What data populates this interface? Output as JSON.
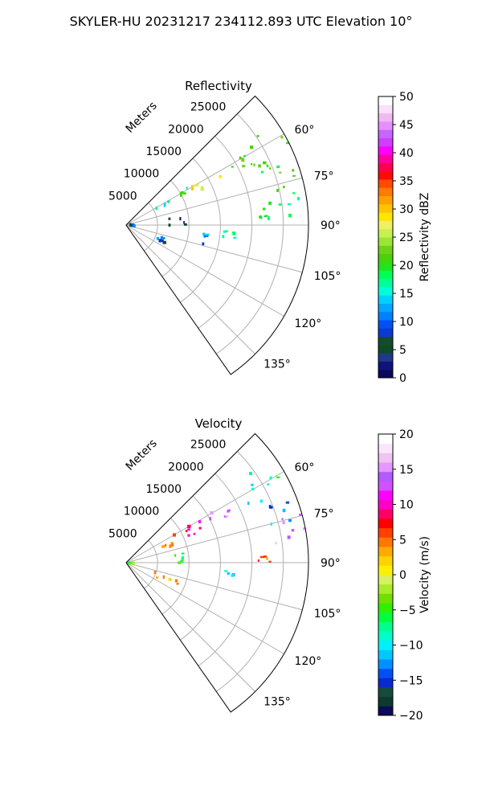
{
  "figure_title": "SKYLER-HU  20231217  234112.893 UTC Elevation 10°",
  "colors": {
    "reflectivity_scale": [
      "#0a0a5c",
      "#10137a",
      "#1d3a8a",
      "#0d4a2a",
      "#154b2e",
      "#0a3ad0",
      "#0050f5",
      "#0080ff",
      "#00a8ff",
      "#00d2ff",
      "#00ffd8",
      "#00ff9a",
      "#00ff55",
      "#22e41a",
      "#48d20a",
      "#6ed21a",
      "#9ae632",
      "#c8f050",
      "#f0f064",
      "#ffe600",
      "#ffc400",
      "#ffa000",
      "#ff7a00",
      "#ff4a00",
      "#ff0a0a",
      "#ff0050",
      "#ff00a0",
      "#ff00ff",
      "#d23cff",
      "#c864ff",
      "#e690ff",
      "#f0b8f0",
      "#fae0fa",
      "#ffffff"
    ],
    "velocity_scale": [
      "#0a0a5c",
      "#0d3a2e",
      "#154b3a",
      "#0a2ad0",
      "#0050f5",
      "#0090ff",
      "#00c8ff",
      "#00f0ff",
      "#00ffc8",
      "#00ff8c",
      "#00ff3c",
      "#30f000",
      "#70e000",
      "#a8ec28",
      "#d8f060",
      "#fff000",
      "#ffd200",
      "#ffaa00",
      "#ff7800",
      "#ff4000",
      "#ff0000",
      "#ff0064",
      "#ff00c8",
      "#ff00ff",
      "#d250ff",
      "#b45aff",
      "#e696ff",
      "#f0c3f0",
      "#fae6fa",
      "#ffffff"
    ]
  },
  "chart_data": [
    {
      "type": "heatmap",
      "projection": "polar-sector",
      "title": "Reflectivity",
      "radial_label": "Meters",
      "radial_ticks": [
        5000,
        10000,
        15000,
        20000,
        25000
      ],
      "radial_tick_labels": [
        "5000",
        "10000",
        "15000",
        "20000",
        "25000"
      ],
      "radial_range": [
        0,
        29000
      ],
      "azimuth_range_deg": [
        45,
        145
      ],
      "azimuth_ticks_deg": [
        60,
        75,
        90,
        105,
        120,
        135
      ],
      "azimuth_tick_labels": [
        "60°",
        "75°",
        "90°",
        "105°",
        "120°",
        "135°"
      ],
      "grid": true,
      "colorbar": {
        "label": "Reflectivity dBZ",
        "range": [
          0,
          50
        ],
        "ticks": [
          0,
          5,
          10,
          15,
          20,
          25,
          30,
          35,
          40,
          45,
          50
        ],
        "tick_labels": [
          "0",
          "5",
          "10",
          "15",
          "20",
          "25",
          "30",
          "35",
          "40",
          "45",
          "50"
        ]
      },
      "echo_regions": [
        {
          "az": [
            54,
            72
          ],
          "r": [
            22000,
            29000
          ],
          "value": 20,
          "density": 0.78
        },
        {
          "az": [
            64,
            82
          ],
          "r": [
            24000,
            28500
          ],
          "value": 20,
          "density": 0.7
        },
        {
          "az": [
            73,
            90
          ],
          "r": [
            22000,
            28000
          ],
          "value": 19,
          "density": 0.45
        },
        {
          "az": [
            57,
            69
          ],
          "r": [
            17000,
            23000
          ],
          "value": 21,
          "density": 0.7
        },
        {
          "az": [
            59,
            66
          ],
          "r": [
            11500,
            17000
          ],
          "value": 28,
          "density": 0.85
        },
        {
          "az": [
            58,
            63
          ],
          "r": [
            9000,
            12000
          ],
          "value": 20,
          "density": 0.6
        },
        {
          "az": [
            58,
            66
          ],
          "r": [
            5000,
            8000
          ],
          "value": 14,
          "density": 0.5
        },
        {
          "az": [
            93,
            98
          ],
          "r": [
            15500,
            17500
          ],
          "value": 16,
          "density": 0.7
        },
        {
          "az": [
            109,
            116
          ],
          "r": [
            5000,
            9000
          ],
          "value": 10,
          "density": 0.45
        },
        {
          "az": [
            80,
            100
          ],
          "r": [
            200,
            2000
          ],
          "value": 8,
          "density": 0.35
        },
        {
          "az": [
            80,
            95
          ],
          "r": [
            6500,
            9500
          ],
          "value": 4,
          "density": 0.12
        },
        {
          "az": [
            86,
            90
          ],
          "r": [
            21000,
            23000
          ],
          "value": 19,
          "density": 0.35
        },
        {
          "az": [
            96,
            104
          ],
          "r": [
            12000,
            14000
          ],
          "value": 11,
          "density": 0.2
        }
      ]
    },
    {
      "type": "heatmap",
      "projection": "polar-sector",
      "title": "Velocity",
      "radial_label": "Meters",
      "radial_ticks": [
        5000,
        10000,
        15000,
        20000,
        25000
      ],
      "radial_tick_labels": [
        "5000",
        "10000",
        "15000",
        "20000",
        "25000"
      ],
      "radial_range": [
        0,
        29000
      ],
      "azimuth_range_deg": [
        45,
        145
      ],
      "azimuth_ticks_deg": [
        60,
        75,
        90,
        105,
        120,
        135
      ],
      "azimuth_tick_labels": [
        "60°",
        "75°",
        "90°",
        "105°",
        "120°",
        "135°"
      ],
      "grid": true,
      "colorbar": {
        "label": "Velocity (m/s)",
        "range": [
          -20,
          20
        ],
        "ticks": [
          -20,
          -15,
          -10,
          -5,
          0,
          5,
          10,
          15,
          20
        ],
        "tick_labels": [
          "−20",
          "−15",
          "−10",
          "−5",
          "0",
          "5",
          "10",
          "15",
          "20"
        ]
      },
      "echo_regions": [
        {
          "az": [
            54,
            66
          ],
          "r": [
            19000,
            28500
          ],
          "value": -9,
          "density": 0.78
        },
        {
          "az": [
            66,
            78
          ],
          "r": [
            22000,
            28000
          ],
          "value": -12,
          "density": 0.8
        },
        {
          "az": [
            74,
            90
          ],
          "r": [
            24000,
            29000
          ],
          "value": 15,
          "density": 0.8
        },
        {
          "az": [
            58,
            66
          ],
          "r": [
            15000,
            19000
          ],
          "value": 15,
          "density": 0.8
        },
        {
          "az": [
            60,
            68
          ],
          "r": [
            10000,
            15000
          ],
          "value": 9,
          "density": 0.85
        },
        {
          "az": [
            60,
            70
          ],
          "r": [
            5000,
            9000
          ],
          "value": 5,
          "density": 0.6
        },
        {
          "az": [
            93,
            98
          ],
          "r": [
            15500,
            17500
          ],
          "value": -9,
          "density": 0.7
        },
        {
          "az": [
            108,
            116
          ],
          "r": [
            4500,
            9000
          ],
          "value": 3,
          "density": 0.5
        },
        {
          "az": [
            80,
            100
          ],
          "r": [
            200,
            2000
          ],
          "value": -5,
          "density": 0.35
        },
        {
          "az": [
            86,
            92
          ],
          "r": [
            21000,
            23000
          ],
          "value": 6,
          "density": 0.3
        },
        {
          "az": [
            80,
            95
          ],
          "r": [
            6500,
            9500
          ],
          "value": -5,
          "density": 0.1
        }
      ]
    }
  ]
}
